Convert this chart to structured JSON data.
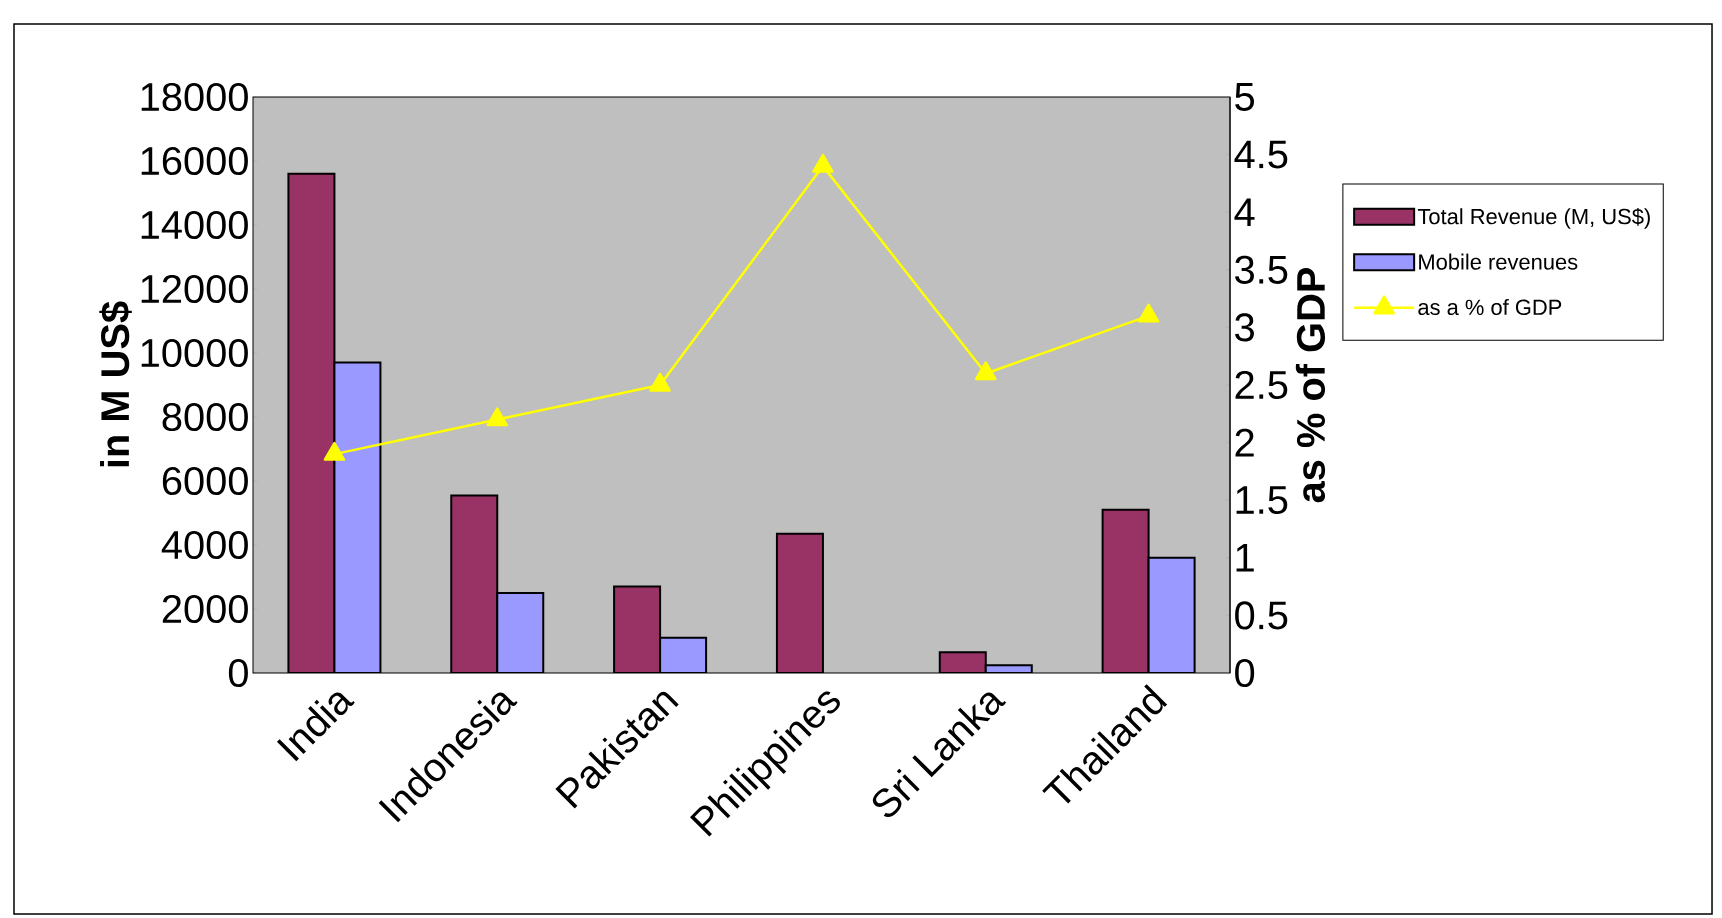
{
  "chart_data": {
    "type": "bar",
    "categories": [
      "India",
      "Indonesia",
      "Pakistan",
      "Philippines",
      "Sri Lanka",
      "Thailand"
    ],
    "series": [
      {
        "name": "Total Revenue (M, US$)",
        "color": "#993366",
        "values": [
          15600,
          5550,
          2700,
          4350,
          650,
          5100
        ]
      },
      {
        "name": "Mobile revenues",
        "color": "#9999ff",
        "values": [
          9700,
          2500,
          1100,
          null,
          240,
          3600
        ]
      },
      {
        "name": "as a % of GDP",
        "type": "line",
        "axis": "y2",
        "color": "#ffff00",
        "marker": "triangle",
        "values": [
          1.9,
          2.2,
          2.5,
          4.4,
          2.6,
          3.1
        ]
      }
    ],
    "ylabel": "in M US$",
    "y2label": "as % of GDP",
    "ylim": [
      0,
      18000
    ],
    "yticks": [
      0,
      2000,
      4000,
      6000,
      8000,
      10000,
      12000,
      14000,
      16000,
      18000
    ],
    "y2lim": [
      0,
      5
    ],
    "y2ticks": [
      0,
      0.5,
      1,
      1.5,
      2,
      2.5,
      3,
      3.5,
      4,
      4.5,
      5
    ],
    "legend": "right",
    "grid": false
  }
}
